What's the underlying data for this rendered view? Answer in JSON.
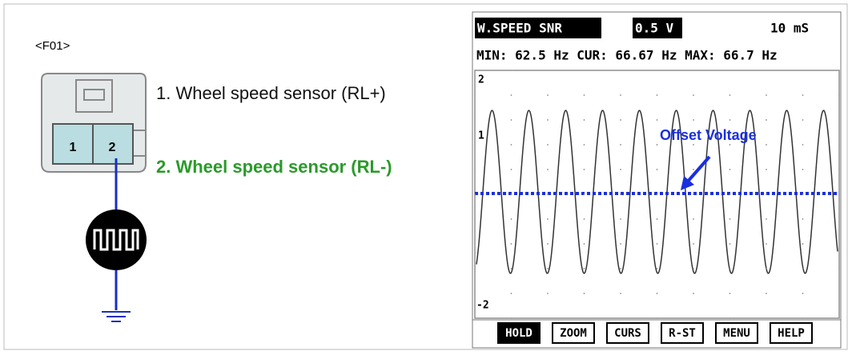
{
  "connector": {
    "label": "<F01>",
    "pins": [
      "1",
      "2"
    ]
  },
  "legend": [
    "1. Wheel speed sensor (RL+)",
    "2. Wheel speed sensor (RL-)"
  ],
  "scope": {
    "channel": "W.SPEED SNR",
    "volts": "0.5 V",
    "time": "10 mS",
    "readout": "MIN: 62.5 Hz CUR: 66.67 Hz MAX: 66.7 Hz",
    "axis_labels": [
      "2",
      "1",
      "-2"
    ],
    "annotation": "Offset Voltage",
    "buttons": [
      "HOLD",
      "ZOOM",
      "CURS",
      "R-ST",
      "MENU",
      "HELP"
    ]
  }
}
